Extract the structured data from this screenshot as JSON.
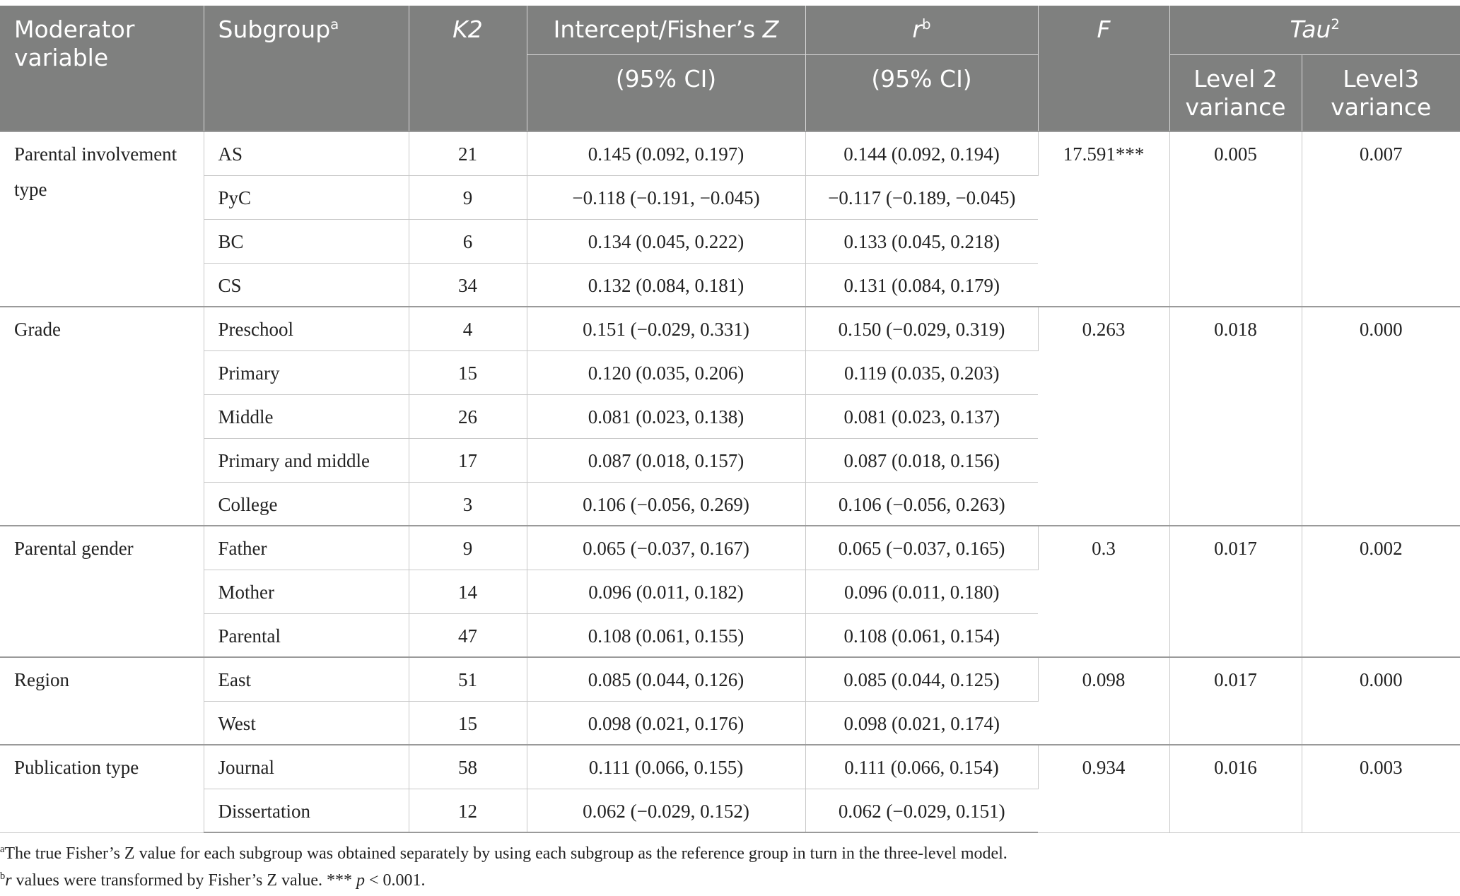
{
  "headers": {
    "moderator_variable": "Moderator variable",
    "subgroup": "Subgroup",
    "subgroup_sup": "a",
    "k2": "K2",
    "intercept": "Intercept/Fisher’s ",
    "intercept_z": "Z",
    "intercept_ci": "(95% CI)",
    "r": "r",
    "r_sup": "b",
    "r_ci": "(95% CI)",
    "f": "F",
    "tau": "Tau",
    "tau_sup": "2",
    "level2": "Level 2 variance",
    "level3": "Level3 variance"
  },
  "groups": [
    {
      "moderator": "Parental involvement type",
      "f": "17.591***",
      "level2": "0.005",
      "level3": "0.007",
      "rows": [
        {
          "subgroup": "AS",
          "k2": "21",
          "z_ci": "0.145 (0.092, 0.197)",
          "r_ci": "0.144 (0.092, 0.194)"
        },
        {
          "subgroup": "PyC",
          "k2": "9",
          "z_ci": "−0.118 (−0.191, −0.045)",
          "r_ci": "−0.117 (−0.189, −0.045)"
        },
        {
          "subgroup": "BC",
          "k2": "6",
          "z_ci": "0.134 (0.045, 0.222)",
          "r_ci": "0.133 (0.045, 0.218)"
        },
        {
          "subgroup": "CS",
          "k2": "34",
          "z_ci": "0.132 (0.084, 0.181)",
          "r_ci": "0.131 (0.084, 0.179)"
        }
      ]
    },
    {
      "moderator": "Grade",
      "f": "0.263",
      "level2": "0.018",
      "level3": "0.000",
      "rows": [
        {
          "subgroup": "Preschool",
          "k2": "4",
          "z_ci": "0.151 (−0.029, 0.331)",
          "r_ci": "0.150 (−0.029, 0.319)"
        },
        {
          "subgroup": "Primary",
          "k2": "15",
          "z_ci": "0.120 (0.035, 0.206)",
          "r_ci": "0.119 (0.035, 0.203)"
        },
        {
          "subgroup": "Middle",
          "k2": "26",
          "z_ci": "0.081 (0.023, 0.138)",
          "r_ci": "0.081 (0.023, 0.137)"
        },
        {
          "subgroup": "Primary and middle",
          "k2": "17",
          "z_ci": "0.087 (0.018, 0.157)",
          "r_ci": "0.087 (0.018, 0.156)"
        },
        {
          "subgroup": "College",
          "k2": "3",
          "z_ci": "0.106 (−0.056, 0.269)",
          "r_ci": "0.106 (−0.056, 0.263)"
        }
      ]
    },
    {
      "moderator": "Parental gender",
      "f": "0.3",
      "level2": "0.017",
      "level3": "0.002",
      "rows": [
        {
          "subgroup": "Father",
          "k2": "9",
          "z_ci": "0.065 (−0.037, 0.167)",
          "r_ci": "0.065 (−0.037, 0.165)"
        },
        {
          "subgroup": "Mother",
          "k2": "14",
          "z_ci": "0.096 (0.011, 0.182)",
          "r_ci": "0.096 (0.011, 0.180)"
        },
        {
          "subgroup": "Parental",
          "k2": "47",
          "z_ci": "0.108 (0.061, 0.155)",
          "r_ci": "0.108 (0.061, 0.154)"
        }
      ]
    },
    {
      "moderator": "Region",
      "f": "0.098",
      "level2": "0.017",
      "level3": "0.000",
      "rows": [
        {
          "subgroup": "East",
          "k2": "51",
          "z_ci": "0.085 (0.044, 0.126)",
          "r_ci": "0.085 (0.044, 0.125)"
        },
        {
          "subgroup": "West",
          "k2": "15",
          "z_ci": "0.098 (0.021, 0.176)",
          "r_ci": "0.098 (0.021, 0.174)"
        }
      ]
    },
    {
      "moderator": "Publication type",
      "f": "0.934",
      "level2": "0.016",
      "level3": "0.003",
      "rows": [
        {
          "subgroup": "Journal",
          "k2": "58",
          "z_ci": "0.111 (0.066, 0.155)",
          "r_ci": "0.111 (0.066, 0.154)"
        },
        {
          "subgroup": "Dissertation",
          "k2": "12",
          "z_ci": "0.062 (−0.029, 0.152)",
          "r_ci": "0.062 (−0.029, 0.151)"
        }
      ]
    }
  ],
  "notes": {
    "a_mark": "a",
    "a_text": "The true Fisher’s Z value for each subgroup was obtained separately by using each subgroup as the reference group in turn in the three-level model.",
    "b_mark": "b",
    "b_r": "r",
    "b_text1": " values were transformed by Fisher’s Z value. *** ",
    "b_p": "p",
    "b_text2": " < 0.001."
  }
}
